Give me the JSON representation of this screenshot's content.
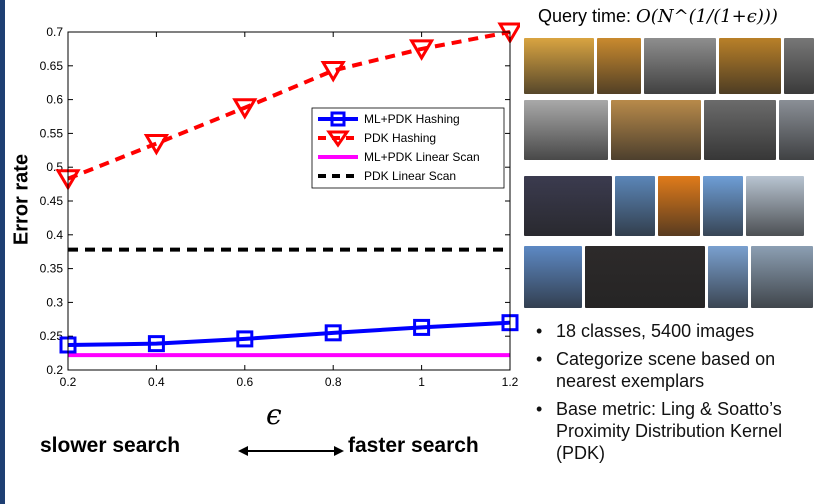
{
  "chart_data": {
    "type": "line",
    "x": [
      0.2,
      0.4,
      0.6,
      0.8,
      1,
      1.2
    ],
    "xlim": [
      0.2,
      1.2
    ],
    "ylim": [
      0.2,
      0.7
    ],
    "xticks": [
      "0.2",
      "0.4",
      "0.6",
      "0.8",
      "1",
      "1.2"
    ],
    "yticks": [
      "0.2",
      "0.25",
      "0.3",
      "0.35",
      "0.4",
      "0.45",
      "0.5",
      "0.55",
      "0.6",
      "0.65",
      "0.7"
    ],
    "ylabel": "Error rate",
    "xlabel": "ϵ",
    "grid": false,
    "legend_position": "top-right",
    "series": [
      {
        "name": "ML+PDK Hashing",
        "color": "#0000ff",
        "style": "solid",
        "marker": "square",
        "values": [
          0.237,
          0.239,
          0.246,
          0.255,
          0.263,
          0.27
        ]
      },
      {
        "name": "PDK Hashing",
        "color": "#ff0000",
        "style": "dashed",
        "marker": "triangle-down",
        "values": [
          0.483,
          0.535,
          0.588,
          0.643,
          0.675,
          0.7
        ]
      },
      {
        "name": "ML+PDK Linear Scan",
        "color": "#ff00ff",
        "style": "solid",
        "marker": "none",
        "values": [
          0.222,
          0.222,
          0.222,
          0.222,
          0.222,
          0.222
        ]
      },
      {
        "name": "PDK Linear Scan",
        "color": "#000000",
        "style": "dashed",
        "marker": "none",
        "values": [
          0.378,
          0.378,
          0.378,
          0.378,
          0.378,
          0.378
        ]
      }
    ]
  },
  "labels": {
    "slower": "slower search",
    "faster": "faster search",
    "query_prefix": "Query time:",
    "query_formula": "O(N^(1/(1+ϵ)))"
  },
  "bullets": [
    "18 classes, 5400 images",
    "Categorize scene based on nearest exemplars",
    "Base metric: Ling & Soatto’s Proximity Distribution Kernel (PDK)"
  ],
  "image_rows": [
    {
      "name": "arc-de-triomphe",
      "colors": [
        "#d9a441",
        "#c98a2e",
        "#8e8e8e",
        "#b98028",
        "#777777"
      ]
    },
    {
      "name": "pantheon",
      "colors": [
        "#a9a9a9",
        "#b88a4a",
        "#6b6b6b",
        "#8a8f96"
      ]
    },
    {
      "name": "eiffel-tower",
      "colors": [
        "#3b3b4f",
        "#5b86b8",
        "#e07b1a",
        "#6e9ed6",
        "#b8c4d1"
      ]
    },
    {
      "name": "tower-bridge",
      "colors": [
        "#5d89c4",
        "#2d2a2a",
        "#7aa0cf",
        "#8c9fb3"
      ]
    }
  ]
}
